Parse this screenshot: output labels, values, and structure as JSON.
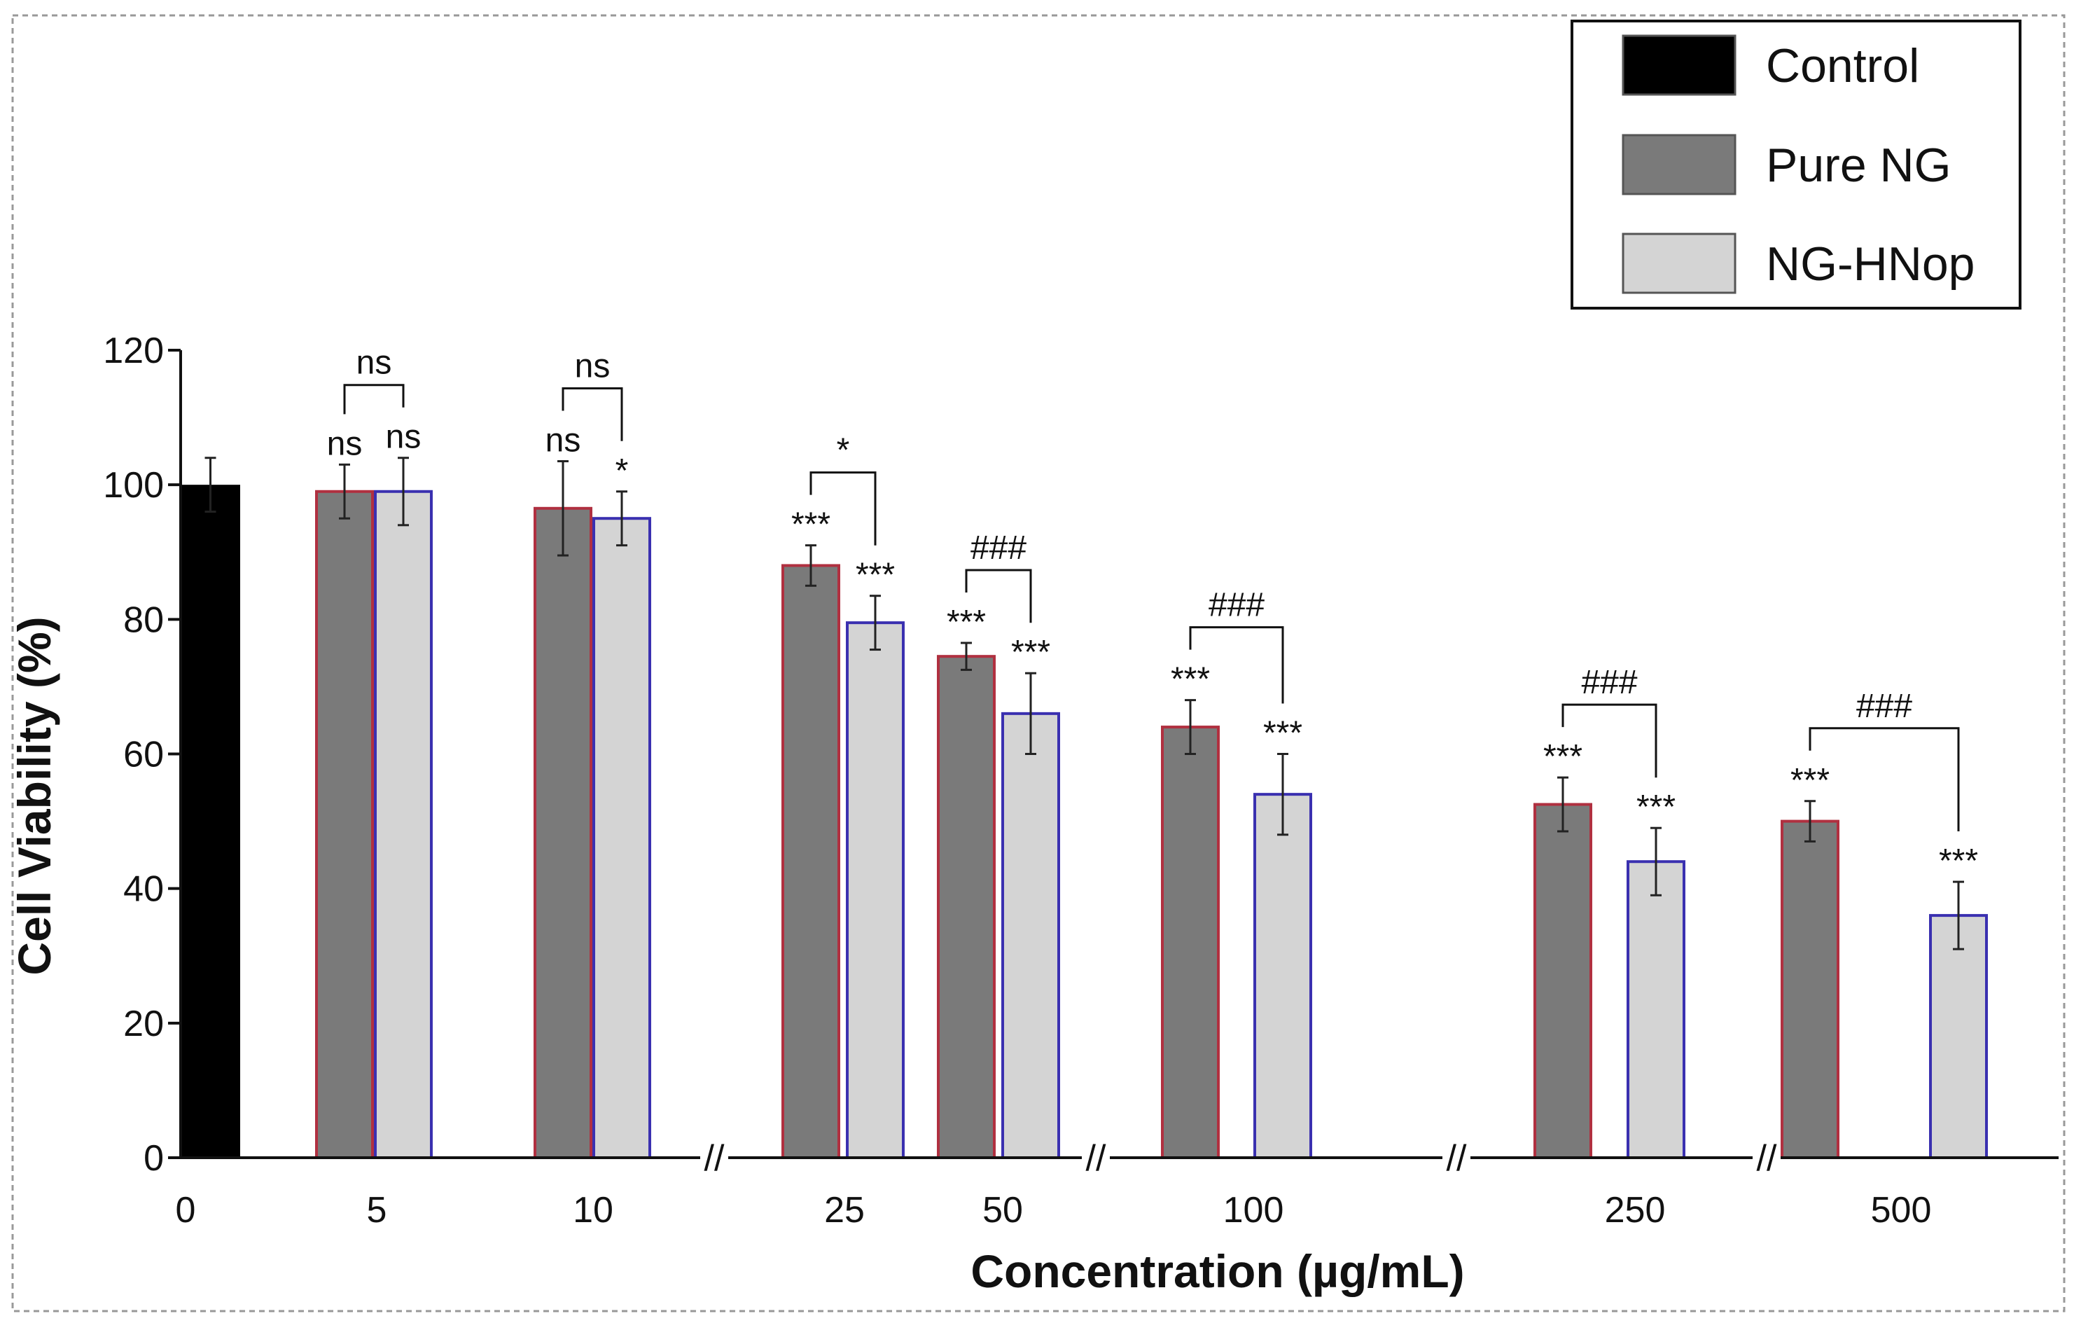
{
  "chart_data": {
    "type": "bar",
    "xlabel": "Concentration (µg/mL)",
    "ylabel": "Cell Viability (%)",
    "ylim": [
      0,
      120
    ],
    "yticks": [
      0,
      20,
      40,
      60,
      80,
      100,
      120
    ],
    "legend_position": "top-right",
    "categories": [
      "0",
      "5",
      "10",
      "25",
      "50",
      "100",
      "250",
      "500"
    ],
    "series": [
      {
        "name": "Control",
        "color": "#000000",
        "values": [
          100,
          null,
          null,
          null,
          null,
          null,
          null,
          null
        ],
        "errors": [
          4,
          null,
          null,
          null,
          null,
          null,
          null,
          null
        ]
      },
      {
        "name": "Pure NG",
        "color": "#7a7a7a",
        "values": [
          null,
          99,
          96.5,
          88,
          74.5,
          64,
          52.5,
          50
        ],
        "errors": [
          null,
          4,
          7,
          3,
          2,
          4,
          4,
          3
        ]
      },
      {
        "name": "NG-HNop",
        "color": "#d4d4d4",
        "values": [
          null,
          99,
          95,
          79.5,
          66,
          54,
          44,
          36
        ],
        "errors": [
          null,
          5,
          4,
          4,
          6,
          6,
          5,
          5
        ]
      }
    ],
    "significance": [
      {
        "category": "5",
        "pure": "ns",
        "hnop": "ns",
        "pair": "ns"
      },
      {
        "category": "10",
        "pure": "ns",
        "hnop": "*",
        "pair": "ns"
      },
      {
        "category": "25",
        "pure": "***",
        "hnop": "***",
        "pair": "*"
      },
      {
        "category": "50",
        "pure": "***",
        "hnop": "***",
        "pair": "###"
      },
      {
        "category": "100",
        "pure": "***",
        "hnop": "***",
        "pair": "###"
      },
      {
        "category": "250",
        "pure": "***",
        "hnop": "***",
        "pair": "###"
      },
      {
        "category": "500",
        "pure": "***",
        "hnop": "***",
        "pair": "###"
      }
    ],
    "axis_breaks": [
      "between 10 and 25",
      "between 50 and 100",
      "between 100 and 250",
      "between 250 and 500"
    ],
    "axis_break_mark": "//"
  }
}
